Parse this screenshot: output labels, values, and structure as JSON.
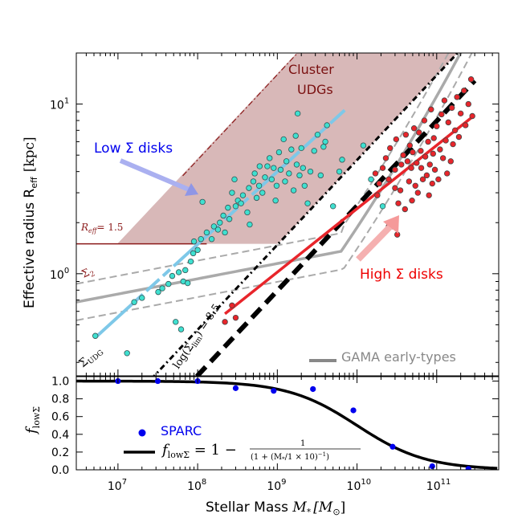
{
  "chart_data": [
    {
      "type": "scatter",
      "panel": "top",
      "xlabel": "",
      "ylabel": "Effective radius R",
      "ylabel_sub": "eff",
      "ylabel_unit": "[kpc]",
      "xscale": "log",
      "yscale": "log",
      "xlim": [
        3000000,
        600000000000
      ],
      "ylim": [
        0.25,
        20
      ],
      "yticks": [
        {
          "v": 1,
          "label": "10",
          "sup": "0"
        },
        {
          "v": 10,
          "label": "10",
          "sup": "1"
        }
      ],
      "annotations": {
        "cluster": [
          "Cluster",
          "UDGs"
        ],
        "low": "Low Σ disks",
        "high": "High Σ disks",
        "reff": "R",
        "reff_sub": "eff",
        "reff_val": "= 1.5",
        "sigma2": "Σ",
        "sigma2_sub": "2",
        "sigmaudg": "Σ",
        "sigmaudg_sub": "UDG",
        "siglim_pre": "log(Σ",
        "siglim_sub": "lim",
        "siglim_post": ") = 8.5",
        "gama": "GAMA early-types"
      },
      "colors": {
        "cyan": "#3fe0d0",
        "red": "#e8252b",
        "lightblue": "#7ec8e8",
        "region": "#d8b8b8",
        "region_edge": "#8b1a1a",
        "gray": "#aaaaaa",
        "lowtext": "#0000ee",
        "hightext": "#ee0000"
      },
      "series": [
        {
          "name": "Low Σ disks",
          "points": [
            [
              5200000.0,
              0.43
            ],
            [
              13000000.0,
              0.34
            ],
            [
              16000000.0,
              0.68
            ],
            [
              20000000.0,
              0.72
            ],
            [
              32000000.0,
              0.78
            ],
            [
              36000000.0,
              0.82
            ],
            [
              43000000.0,
              0.87
            ],
            [
              48000000.0,
              0.97
            ],
            [
              53000000.0,
              0.52
            ],
            [
              58000000.0,
              1.02
            ],
            [
              62000000.0,
              0.47
            ],
            [
              66000000.0,
              0.9
            ],
            [
              70000000.0,
              1.05
            ],
            [
              75000000.0,
              0.88
            ],
            [
              82000000.0,
              1.18
            ],
            [
              88000000.0,
              1.32
            ],
            [
              90000000.0,
              1.55
            ],
            [
              100000000.0,
              1.38
            ],
            [
              110000000.0,
              1.6
            ],
            [
              115000000.0,
              2.65
            ],
            [
              130000000.0,
              1.75
            ],
            [
              150000000.0,
              1.6
            ],
            [
              160000000.0,
              1.9
            ],
            [
              180000000.0,
              1.82
            ],
            [
              190000000.0,
              2.0
            ],
            [
              210000000.0,
              2.2
            ],
            [
              220000000.0,
              1.75
            ],
            [
              240000000.0,
              2.45
            ],
            [
              250000000.0,
              2.1
            ],
            [
              270000000.0,
              3.0
            ],
            [
              290000000.0,
              3.6
            ],
            [
              300000000.0,
              2.5
            ],
            [
              320000000.0,
              2.7
            ],
            [
              350000000.0,
              2.6
            ],
            [
              370000000.0,
              2.9
            ],
            [
              420000000.0,
              2.3
            ],
            [
              440000000.0,
              3.2
            ],
            [
              450000000.0,
              1.95
            ],
            [
              500000000.0,
              3.5
            ],
            [
              520000000.0,
              3.9
            ],
            [
              550000000.0,
              2.8
            ],
            [
              590000000.0,
              3.3
            ],
            [
              600000000.0,
              4.3
            ],
            [
              650000000.0,
              3.0
            ],
            [
              700000000.0,
              3.7
            ],
            [
              750000000.0,
              4.3
            ],
            [
              800000000.0,
              4.8
            ],
            [
              850000000.0,
              3.6
            ],
            [
              900000000.0,
              4.2
            ],
            [
              950000000.0,
              2.7
            ],
            [
              980000000.0,
              3.3
            ],
            [
              1050000000.0,
              5.2
            ],
            [
              1100000000.0,
              4.1
            ],
            [
              1200000000.0,
              6.2
            ],
            [
              1250000000.0,
              3.5
            ],
            [
              1300000000.0,
              4.6
            ],
            [
              1400000000.0,
              3.9
            ],
            [
              1500000000.0,
              5.4
            ],
            [
              1600000000.0,
              3.1
            ],
            [
              1700000000.0,
              6.5
            ],
            [
              1750000000.0,
              4.4
            ],
            [
              1800000000.0,
              8.8
            ],
            [
              1900000000.0,
              3.8
            ],
            [
              2000000000.0,
              5.5
            ],
            [
              2100000000.0,
              4.2
            ],
            [
              2200000000.0,
              3.3
            ],
            [
              2400000000.0,
              2.6
            ],
            [
              2600000000.0,
              4.0
            ],
            [
              2900000000.0,
              5.3
            ],
            [
              3200000000.0,
              6.6
            ],
            [
              3500000000.0,
              3.8
            ],
            [
              3800000000.0,
              5.6
            ],
            [
              4000000000.0,
              6.0
            ],
            [
              4200000000.0,
              7.5
            ],
            [
              5000000000.0,
              2.5
            ],
            [
              6000000000.0,
              4.0
            ],
            [
              6500000000.0,
              4.7
            ],
            [
              12000000000.0,
              5.7
            ],
            [
              15000000000.0,
              3.6
            ],
            [
              21000000000.0,
              2.5
            ]
          ]
        },
        {
          "name": "High Σ disks",
          "points": [
            [
              220000000.0,
              0.52
            ],
            [
              270000000.0,
              0.65
            ],
            [
              300000000.0,
              0.55
            ],
            [
              17000000000.0,
              3.9
            ],
            [
              18000000000.0,
              2.9
            ],
            [
              19000000000.0,
              3.4
            ],
            [
              21000000000.0,
              4.2
            ],
            [
              23000000000.0,
              4.8
            ],
            [
              25000000000.0,
              3.6
            ],
            [
              25000000000.0,
              1.9
            ],
            [
              26000000000.0,
              5.5
            ],
            [
              28000000000.0,
              1.9
            ],
            [
              30000000000.0,
              4.1
            ],
            [
              30000000000.0,
              3.2
            ],
            [
              31000000000.0,
              6.2
            ],
            [
              32000000000.0,
              1.7
            ],
            [
              33000000000.0,
              2.6
            ],
            [
              35000000000.0,
              3.1
            ],
            [
              36000000000.0,
              4.4
            ],
            [
              38000000000.0,
              5.0
            ],
            [
              40000000000.0,
              2.4
            ],
            [
              41000000000.0,
              6.6
            ],
            [
              43000000000.0,
              4.6
            ],
            [
              45000000000.0,
              3.5
            ],
            [
              46000000000.0,
              5.7
            ],
            [
              48000000000.0,
              4.2
            ],
            [
              49000000000.0,
              2.7
            ],
            [
              50000000000.0,
              5.2
            ],
            [
              52000000000.0,
              7.2
            ],
            [
              54000000000.0,
              3.3
            ],
            [
              56000000000.0,
              4.5
            ],
            [
              58000000000.0,
              3.0
            ],
            [
              60000000000.0,
              6.8
            ],
            [
              63000000000.0,
              5.3
            ],
            [
              64000000000.0,
              4.2
            ],
            [
              67000000000.0,
              3.6
            ],
            [
              70000000000.0,
              8.0
            ],
            [
              72000000000.0,
              4.9
            ],
            [
              75000000000.0,
              3.8
            ],
            [
              78000000000.0,
              6.0
            ],
            [
              80000000000.0,
              2.9
            ],
            [
              82000000000.0,
              4.4
            ],
            [
              85000000000.0,
              9.3
            ],
            [
              88000000000.0,
              3.4
            ],
            [
              90000000000.0,
              5.1
            ],
            [
              92000000000.0,
              6.3
            ],
            [
              95000000000.0,
              4.1
            ],
            [
              100000000000.0,
              7.4
            ],
            [
              105000000000.0,
              3.6
            ],
            [
              110000000000.0,
              5.4
            ],
            [
              115000000000.0,
              8.7
            ],
            [
              120000000000.0,
              4.8
            ],
            [
              125000000000.0,
              10.5
            ],
            [
              130000000000.0,
              6.1
            ],
            [
              135000000000.0,
              3.9
            ],
            [
              140000000000.0,
              7.8
            ],
            [
              150000000000.0,
              4.6
            ],
            [
              155000000000.0,
              9.5
            ],
            [
              160000000000.0,
              5.8
            ],
            [
              170000000000.0,
              7.0
            ],
            [
              180000000000.0,
              11.0
            ],
            [
              190000000000.0,
              6.4
            ],
            [
              200000000000.0,
              8.8
            ],
            [
              220000000000.0,
              12.0
            ],
            [
              230000000000.0,
              7.5
            ],
            [
              250000000000.0,
              10.0
            ],
            [
              270000000000.0,
              14.0
            ],
            [
              280000000000.0,
              8.5
            ]
          ]
        }
      ]
    },
    {
      "type": "scatter",
      "panel": "bottom",
      "xlabel": "Stellar Mass ",
      "xlabel_math": "M",
      "xlabel_sub": "*",
      "xlabel_unit": "[M",
      "xlabel_unit_sub": "⊙",
      "xlabel_unit_close": "]",
      "ylabel": "f",
      "ylabel_sub": "lowΣ",
      "xscale": "log",
      "xlim": [
        3000000,
        600000000000
      ],
      "ylim": [
        0,
        1.05
      ],
      "xticks": [
        {
          "v": 10000000,
          "label": "10",
          "sup": "7"
        },
        {
          "v": 100000000,
          "label": "10",
          "sup": "8"
        },
        {
          "v": 1000000000,
          "label": "10",
          "sup": "9"
        },
        {
          "v": 10000000000,
          "label": "10",
          "sup": "10"
        },
        {
          "v": 100000000000,
          "label": "10",
          "sup": "11"
        }
      ],
      "yticks": [
        {
          "v": 0,
          "label": "0.0"
        },
        {
          "v": 0.2,
          "label": "0.2"
        },
        {
          "v": 0.4,
          "label": "0.4"
        },
        {
          "v": 0.6,
          "label": "0.6"
        },
        {
          "v": 0.8,
          "label": "0.8"
        },
        {
          "v": 1.0,
          "label": "1.0"
        }
      ],
      "series": [
        {
          "name": "SPARC",
          "x": [
            10000000,
            31600000,
            100000000,
            300000000,
            900000000,
            2800000000,
            9000000000,
            28000000000,
            88000000000,
            250000000000
          ],
          "values": [
            1.0,
            1.0,
            1.0,
            0.92,
            0.89,
            0.91,
            0.67,
            0.26,
            0.04,
            0.01
          ]
        }
      ],
      "legend": {
        "sparc": "SPARC",
        "formula_lhs": "f",
        "formula_lhs_sub": "lowΣ",
        "formula_rhs_pre": " = 1 − ",
        "formula_num": "1",
        "formula_den": "(1 + (M",
        "formula_den_sub": "*",
        "formula_den_post": "/1 × 10)",
        "formula_den_sup": "−1",
        "formula_den_close": ")"
      },
      "model": {
        "name": "fit",
        "x0": 10000000000,
        "formula": "1 - 1/(1 + (M/1e10)^-1)"
      }
    }
  ]
}
